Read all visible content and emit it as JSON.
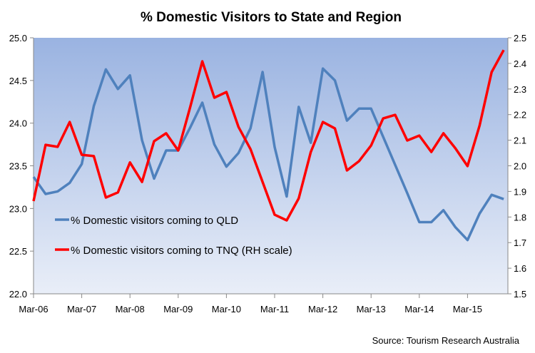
{
  "chart_data": {
    "type": "line",
    "title": "% Domestic Visitors to State and Region",
    "source": "Source: Tourism Research Australia",
    "x_tick_labels": [
      "Mar-06",
      "Mar-07",
      "Mar-08",
      "Mar-09",
      "Mar-10",
      "Mar-11",
      "Mar-12",
      "Mar-13",
      "Mar-14",
      "Mar-15"
    ],
    "x_start": "Mar-06",
    "x_frequency": "quarterly",
    "y_left": {
      "min": 22.0,
      "max": 25.0,
      "step": 0.5,
      "tick_labels": [
        "22.0",
        "22.5",
        "23.0",
        "23.5",
        "24.0",
        "24.5",
        "25.0"
      ]
    },
    "y_right": {
      "min": 1.5,
      "max": 2.5,
      "step": 0.1,
      "tick_labels": [
        "1.5",
        "1.6",
        "1.7",
        "1.8",
        "1.9",
        "2.0",
        "2.1",
        "2.2",
        "2.3",
        "2.4",
        "2.5"
      ]
    },
    "legend_position": "lower-left",
    "series": [
      {
        "name": "% Domestic visitors coming to QLD",
        "axis": "left",
        "color": "#4F81BD",
        "values": [
          23.37,
          23.17,
          23.2,
          23.3,
          23.52,
          24.2,
          24.63,
          24.4,
          24.56,
          23.8,
          23.35,
          23.68,
          23.68,
          23.95,
          24.24,
          23.75,
          23.49,
          23.65,
          23.94,
          24.6,
          23.72,
          23.14,
          24.19,
          23.77,
          24.64,
          24.5,
          24.03,
          24.17,
          24.17,
          23.84,
          23.51,
          23.18,
          22.84,
          22.84,
          22.98,
          22.78,
          22.63,
          22.94,
          23.16,
          23.11
        ]
      },
      {
        "name": "% Domestic visitors coming to TNQ (RH scale)",
        "axis": "right",
        "color": "#FF0000",
        "values": [
          1.862,
          2.082,
          2.074,
          2.171,
          2.043,
          2.038,
          1.876,
          1.896,
          2.013,
          1.937,
          2.096,
          2.127,
          2.06,
          2.23,
          2.408,
          2.266,
          2.288,
          2.152,
          2.065,
          1.937,
          1.809,
          1.787,
          1.873,
          2.054,
          2.171,
          2.146,
          1.982,
          2.018,
          2.079,
          2.185,
          2.199,
          2.099,
          2.118,
          2.054,
          2.127,
          2.068,
          1.999,
          2.157,
          2.366,
          2.452
        ]
      }
    ]
  }
}
